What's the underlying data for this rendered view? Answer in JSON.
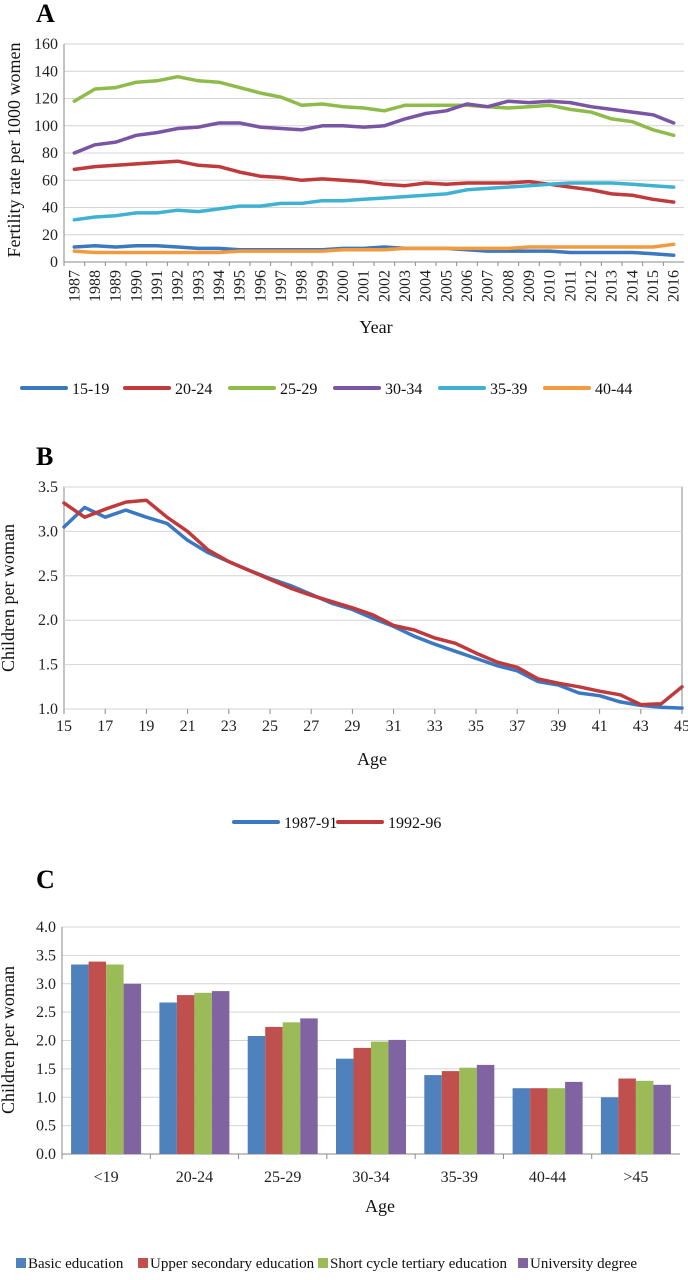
{
  "chart_data": [
    {
      "panel": "A",
      "type": "line",
      "ylabel": "Fertility rate per 1000 women",
      "xlabel": "Year",
      "ylim": [
        0,
        160
      ],
      "yticks": [
        0,
        20,
        40,
        60,
        80,
        100,
        120,
        140,
        160
      ],
      "grid": true,
      "legend_position": "bottom",
      "x": [
        1987,
        1988,
        1989,
        1990,
        1991,
        1992,
        1993,
        1994,
        1995,
        1996,
        1997,
        1998,
        1999,
        2000,
        2001,
        2002,
        2003,
        2004,
        2005,
        2006,
        2007,
        2008,
        2009,
        2010,
        2011,
        2012,
        2013,
        2014,
        2015,
        2016
      ],
      "series": [
        {
          "name": "15-19",
          "color": "#3b78c2",
          "values": [
            11,
            12,
            11,
            12,
            12,
            11,
            10,
            10,
            9,
            9,
            9,
            9,
            9,
            10,
            10,
            11,
            10,
            10,
            10,
            9,
            8,
            8,
            8,
            8,
            7,
            7,
            7,
            7,
            6,
            5
          ]
        },
        {
          "name": "20-24",
          "color": "#c0393b",
          "values": [
            68,
            70,
            71,
            72,
            73,
            74,
            71,
            70,
            66,
            63,
            62,
            60,
            61,
            60,
            59,
            57,
            56,
            58,
            57,
            58,
            58,
            58,
            59,
            57,
            55,
            53,
            50,
            49,
            46,
            44
          ]
        },
        {
          "name": "25-29",
          "color": "#8fbb4a",
          "values": [
            118,
            127,
            128,
            132,
            133,
            136,
            133,
            132,
            128,
            124,
            121,
            115,
            116,
            114,
            113,
            111,
            115,
            115,
            115,
            115,
            114,
            113,
            114,
            115,
            112,
            110,
            105,
            103,
            97,
            93
          ]
        },
        {
          "name": "30-34",
          "color": "#7a55a4",
          "values": [
            80,
            86,
            88,
            93,
            95,
            98,
            99,
            102,
            102,
            99,
            98,
            97,
            100,
            100,
            99,
            100,
            105,
            109,
            111,
            116,
            114,
            118,
            117,
            118,
            117,
            114,
            112,
            110,
            108,
            102
          ]
        },
        {
          "name": "35-39",
          "color": "#3fb2d4",
          "values": [
            31,
            33,
            34,
            36,
            36,
            38,
            37,
            39,
            41,
            41,
            43,
            43,
            45,
            45,
            46,
            47,
            48,
            49,
            50,
            53,
            54,
            55,
            56,
            57,
            58,
            58,
            58,
            57,
            56,
            55
          ]
        },
        {
          "name": "40-44",
          "color": "#f29a3c",
          "values": [
            8,
            7,
            7,
            7,
            7,
            7,
            7,
            7,
            8,
            8,
            8,
            8,
            8,
            9,
            9,
            9,
            10,
            10,
            10,
            10,
            10,
            10,
            11,
            11,
            11,
            11,
            11,
            11,
            11,
            13
          ]
        }
      ]
    },
    {
      "panel": "B",
      "type": "line",
      "ylabel": "Children per woman",
      "xlabel": "Age",
      "ylim": [
        1.0,
        3.5
      ],
      "yticks": [
        "1.0",
        "1.5",
        "2.0",
        "2.5",
        "3.0",
        "3.5"
      ],
      "xticks": [
        15,
        17,
        19,
        21,
        23,
        25,
        27,
        29,
        31,
        33,
        35,
        37,
        39,
        41,
        43,
        45
      ],
      "grid": true,
      "legend_position": "bottom",
      "x": [
        15,
        16,
        17,
        18,
        19,
        20,
        21,
        22,
        23,
        24,
        25,
        26,
        27,
        28,
        29,
        30,
        31,
        32,
        33,
        34,
        35,
        36,
        37,
        38,
        39,
        40,
        41,
        42,
        43,
        44,
        45
      ],
      "series": [
        {
          "name": "1987-91",
          "color": "#3b78c2",
          "values": [
            3.05,
            3.27,
            3.16,
            3.24,
            3.16,
            3.09,
            2.9,
            2.76,
            2.66,
            2.56,
            2.47,
            2.39,
            2.29,
            2.19,
            2.12,
            2.02,
            1.93,
            1.82,
            1.73,
            1.65,
            1.57,
            1.49,
            1.43,
            1.31,
            1.27,
            1.18,
            1.15,
            1.08,
            1.04,
            1.02,
            1.01
          ]
        },
        {
          "name": "1992-96",
          "color": "#c0393b",
          "values": [
            3.32,
            3.16,
            3.25,
            3.33,
            3.35,
            3.16,
            3.0,
            2.79,
            2.66,
            2.56,
            2.46,
            2.36,
            2.28,
            2.21,
            2.14,
            2.06,
            1.94,
            1.89,
            1.8,
            1.74,
            1.63,
            1.53,
            1.47,
            1.34,
            1.29,
            1.25,
            1.2,
            1.16,
            1.05,
            1.06,
            1.25
          ]
        }
      ]
    },
    {
      "panel": "C",
      "type": "bar",
      "ylabel": "Children per woman",
      "xlabel": "Age",
      "ylim": [
        0.0,
        4.0
      ],
      "yticks": [
        "0.0",
        "0.5",
        "1.0",
        "1.5",
        "2.0",
        "2.5",
        "3.0",
        "3.5",
        "4.0"
      ],
      "grid": true,
      "legend_position": "bottom",
      "categories": [
        "<19",
        "20-24",
        "25-29",
        "30-34",
        "35-39",
        "40-44",
        ">45"
      ],
      "series": [
        {
          "name": "Basic education",
          "color": "#4f81bd",
          "values": [
            3.34,
            2.67,
            2.08,
            1.68,
            1.39,
            1.16,
            1.0
          ]
        },
        {
          "name": "Upper secondary education",
          "color": "#c0504d",
          "values": [
            3.39,
            2.8,
            2.24,
            1.87,
            1.46,
            1.16,
            1.33
          ]
        },
        {
          "name": "Short cycle tertiary education",
          "color": "#9bbb59",
          "values": [
            3.34,
            2.84,
            2.32,
            1.98,
            1.52,
            1.16,
            1.29
          ]
        },
        {
          "name": "University degree",
          "color": "#8064a2",
          "values": [
            3.0,
            2.87,
            2.39,
            2.01,
            1.57,
            1.27,
            1.22
          ]
        }
      ]
    }
  ]
}
